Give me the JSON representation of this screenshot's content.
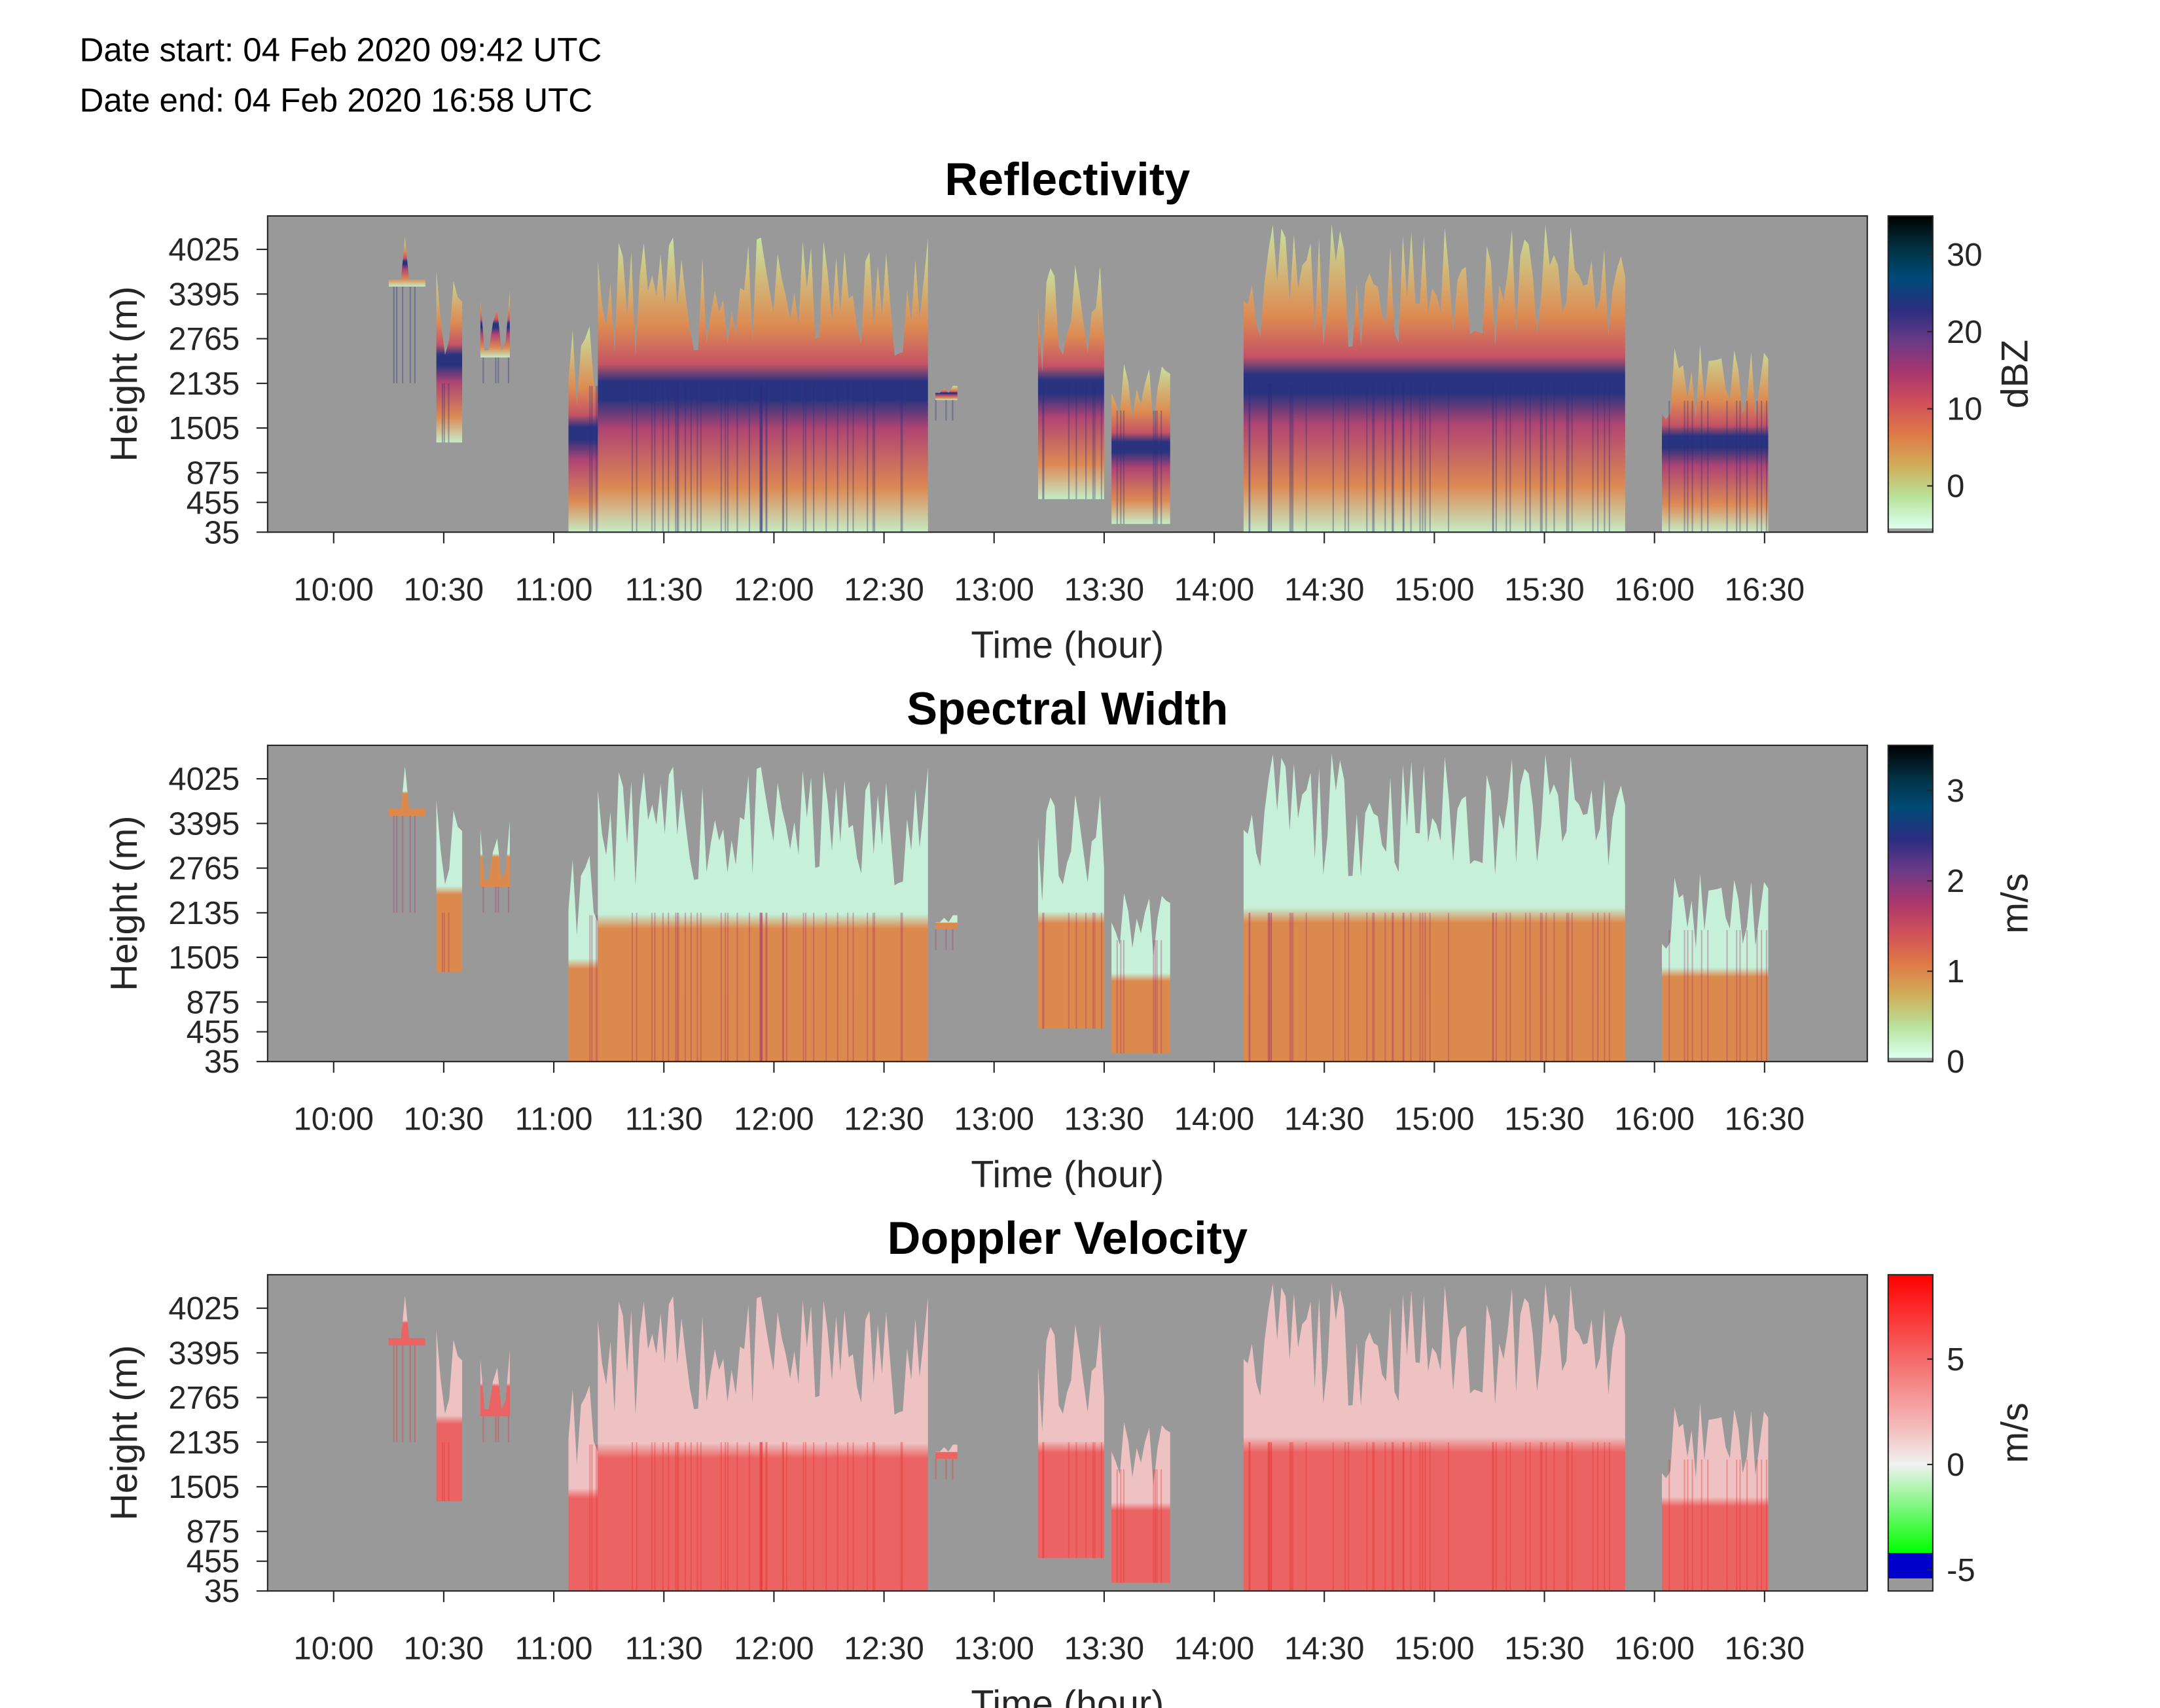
{
  "header": {
    "date_start": "Date start: 04 Feb 2020 09:42 UTC",
    "date_end": "Date end:  04 Feb 2020 16:58 UTC"
  },
  "chart_data": [
    {
      "type": "heatmap",
      "title": "Reflectivity",
      "xlabel": "Time (hour)",
      "ylabel": "Height (m)",
      "colorbar_label": "dBZ",
      "colorbar_ticks": [
        "0",
        "10",
        "20",
        "30"
      ],
      "colorbar_tick_values": [
        0,
        10,
        20,
        30
      ],
      "clim": [
        -6,
        35
      ],
      "colormap": [
        "#dcfff0",
        "#b9e29a",
        "#d0ae5a",
        "#e07a48",
        "#d0505a",
        "#a8366e",
        "#6a3a88",
        "#2a2e80",
        "#004a78",
        "#033040",
        "#000000"
      ],
      "bright_band_color": "#232e7e",
      "background": "#999999"
    },
    {
      "type": "heatmap",
      "title": "Spectral Width",
      "xlabel": "Time (hour)",
      "ylabel": "Height (m)",
      "colorbar_label": "m/s",
      "colorbar_ticks": [
        "0",
        "1",
        "2",
        "3"
      ],
      "colorbar_tick_values": [
        0,
        1,
        2,
        3
      ],
      "clim": [
        0,
        3.5
      ],
      "colormap": [
        "#dcfff0",
        "#b9e29a",
        "#d0ae5a",
        "#e07a48",
        "#d0505a",
        "#a8366e",
        "#6a3a88",
        "#2a2e80",
        "#004a78",
        "#033040",
        "#000000"
      ],
      "upper_color": "#c8f5dc",
      "lower_color": "#e0884a",
      "background": "#999999"
    },
    {
      "type": "heatmap",
      "title": "Doppler Velocity",
      "xlabel": "Time (hour)",
      "ylabel": "Height (m)",
      "colorbar_label": "m/s",
      "colorbar_ticks": [
        "-5",
        "0",
        "5"
      ],
      "colorbar_tick_values": [
        -5,
        0,
        5
      ],
      "clim": [
        -6,
        9
      ],
      "colormap": [
        "#999999",
        "#0000cc",
        "#00ff00",
        "#f0f0f0",
        "#f5b5b5",
        "#f56a6a",
        "#ff0000"
      ],
      "upper_color": "#f2c4c4",
      "lower_color": "#f06060",
      "background": "#999999"
    }
  ],
  "axes": {
    "x_ticks": [
      "10:00",
      "10:30",
      "11:00",
      "11:30",
      "12:00",
      "12:30",
      "13:00",
      "13:30",
      "14:00",
      "14:30",
      "15:00",
      "15:30",
      "16:00",
      "16:30"
    ],
    "x_tick_minutes": [
      600,
      630,
      660,
      690,
      720,
      750,
      780,
      810,
      840,
      870,
      900,
      930,
      960,
      990
    ],
    "xlim_minutes": [
      582,
      1018
    ],
    "y_ticks": [
      "35",
      "455",
      "875",
      "1505",
      "2135",
      "2765",
      "3395",
      "4025"
    ],
    "y_tick_values": [
      35,
      455,
      875,
      1505,
      2135,
      2765,
      3395,
      4025
    ],
    "ylim": [
      35,
      4497
    ]
  },
  "echo_regions": [
    {
      "start": 615,
      "end": 625,
      "top": 4450,
      "base": 3500
    },
    {
      "start": 628,
      "end": 635,
      "top": 4000,
      "base": 1300
    },
    {
      "start": 640,
      "end": 648,
      "top": 3600,
      "base": 2500
    },
    {
      "start": 664,
      "end": 672,
      "top": 3000,
      "base": 35
    },
    {
      "start": 672,
      "end": 762,
      "top": 4200,
      "base": 35
    },
    {
      "start": 764,
      "end": 770,
      "top": 2300,
      "base": 1900
    },
    {
      "start": 792,
      "end": 810,
      "top": 3800,
      "base": 500
    },
    {
      "start": 812,
      "end": 828,
      "top": 2500,
      "base": 150
    },
    {
      "start": 848,
      "end": 952,
      "top": 4400,
      "base": 35
    },
    {
      "start": 962,
      "end": 991,
      "top": 2700,
      "base": 35
    }
  ]
}
